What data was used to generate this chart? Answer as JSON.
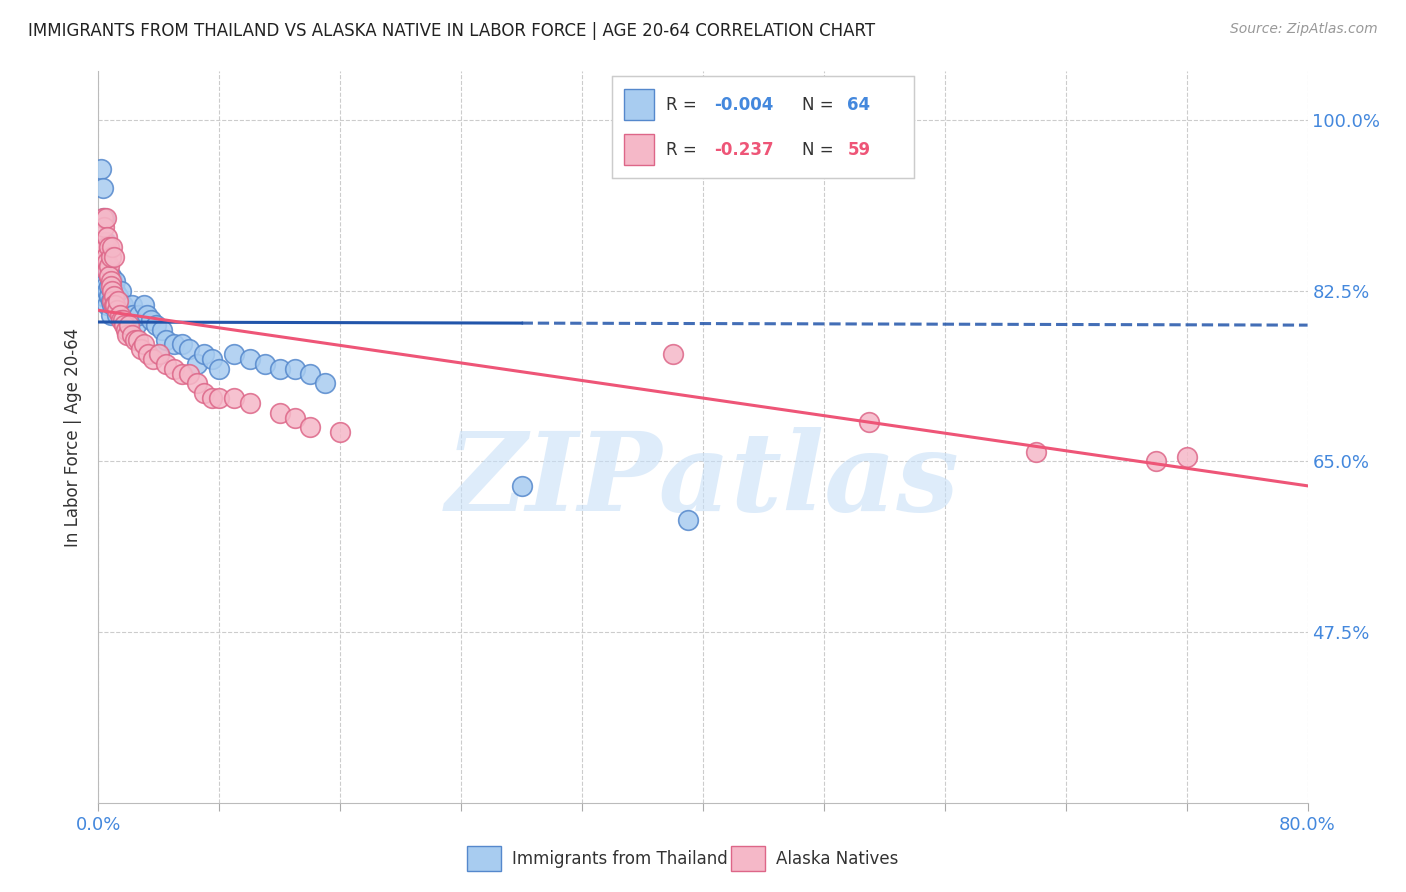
{
  "title": "IMMIGRANTS FROM THAILAND VS ALASKA NATIVE IN LABOR FORCE | AGE 20-64 CORRELATION CHART",
  "source": "Source: ZipAtlas.com",
  "ylabel": "In Labor Force | Age 20-64",
  "xmin": 0.0,
  "xmax": 0.8,
  "ymin": 0.3,
  "ymax": 1.05,
  "yticks": [
    0.475,
    0.65,
    0.825,
    1.0
  ],
  "ytick_labels": [
    "47.5%",
    "65.0%",
    "82.5%",
    "100.0%"
  ],
  "blue_color": "#A8CCF0",
  "blue_edge_color": "#5588CC",
  "pink_color": "#F5B8C8",
  "pink_edge_color": "#DD6688",
  "blue_line_color": "#2255AA",
  "pink_line_color": "#EE5577",
  "tick_label_color": "#4488DD",
  "legend_blue_label": "Immigrants from Thailand",
  "legend_pink_label": "Alaska Natives",
  "grid_color": "#CCCCCC",
  "background_color": "#FFFFFF",
  "watermark_text": "ZIPatlas",
  "watermark_color": "#C8E0F8",
  "blue_scatter_x": [
    0.003,
    0.003,
    0.004,
    0.005,
    0.005,
    0.006,
    0.006,
    0.007,
    0.007,
    0.008,
    0.008,
    0.008,
    0.009,
    0.009,
    0.01,
    0.01,
    0.01,
    0.011,
    0.011,
    0.012,
    0.012,
    0.013,
    0.013,
    0.014,
    0.015,
    0.015,
    0.016,
    0.017,
    0.018,
    0.019,
    0.02,
    0.021,
    0.022,
    0.023,
    0.025,
    0.027,
    0.03,
    0.032,
    0.035,
    0.038,
    0.04,
    0.042,
    0.045,
    0.05,
    0.055,
    0.06,
    0.065,
    0.07,
    0.075,
    0.08,
    0.09,
    0.1,
    0.11,
    0.12,
    0.13,
    0.14,
    0.15,
    0.002,
    0.003,
    0.004,
    0.005,
    0.28,
    0.39,
    0.002
  ],
  "blue_scatter_y": [
    0.84,
    0.82,
    0.835,
    0.83,
    0.845,
    0.825,
    0.81,
    0.82,
    0.83,
    0.815,
    0.84,
    0.8,
    0.81,
    0.835,
    0.81,
    0.83,
    0.82,
    0.835,
    0.825,
    0.815,
    0.8,
    0.82,
    0.81,
    0.81,
    0.825,
    0.81,
    0.81,
    0.8,
    0.79,
    0.795,
    0.8,
    0.79,
    0.81,
    0.8,
    0.79,
    0.8,
    0.81,
    0.8,
    0.795,
    0.79,
    0.76,
    0.785,
    0.775,
    0.77,
    0.77,
    0.765,
    0.75,
    0.76,
    0.755,
    0.745,
    0.76,
    0.755,
    0.75,
    0.745,
    0.745,
    0.74,
    0.73,
    0.95,
    0.93,
    0.9,
    0.875,
    0.625,
    0.59,
    0.855
  ],
  "pink_scatter_x": [
    0.003,
    0.004,
    0.005,
    0.005,
    0.006,
    0.006,
    0.007,
    0.007,
    0.008,
    0.008,
    0.009,
    0.009,
    0.01,
    0.01,
    0.011,
    0.012,
    0.013,
    0.014,
    0.015,
    0.016,
    0.017,
    0.018,
    0.019,
    0.02,
    0.022,
    0.024,
    0.026,
    0.028,
    0.03,
    0.033,
    0.036,
    0.04,
    0.045,
    0.05,
    0.055,
    0.06,
    0.065,
    0.07,
    0.075,
    0.08,
    0.09,
    0.1,
    0.12,
    0.13,
    0.14,
    0.16,
    0.003,
    0.004,
    0.005,
    0.006,
    0.007,
    0.008,
    0.009,
    0.01,
    0.38,
    0.51,
    0.62,
    0.7,
    0.72
  ],
  "pink_scatter_y": [
    0.865,
    0.875,
    0.87,
    0.86,
    0.855,
    0.845,
    0.85,
    0.84,
    0.835,
    0.83,
    0.825,
    0.815,
    0.82,
    0.81,
    0.81,
    0.805,
    0.815,
    0.8,
    0.795,
    0.795,
    0.79,
    0.785,
    0.78,
    0.79,
    0.78,
    0.775,
    0.775,
    0.765,
    0.77,
    0.76,
    0.755,
    0.76,
    0.75,
    0.745,
    0.74,
    0.74,
    0.73,
    0.72,
    0.715,
    0.715,
    0.715,
    0.71,
    0.7,
    0.695,
    0.685,
    0.68,
    0.9,
    0.89,
    0.9,
    0.88,
    0.87,
    0.86,
    0.87,
    0.86,
    0.76,
    0.69,
    0.66,
    0.65,
    0.655
  ],
  "blue_trendline_x": [
    0.0,
    0.5
  ],
  "blue_trendline_y": [
    0.793,
    0.791
  ],
  "pink_trendline_x": [
    0.0,
    0.8
  ],
  "pink_trendline_y": [
    0.805,
    0.625
  ]
}
